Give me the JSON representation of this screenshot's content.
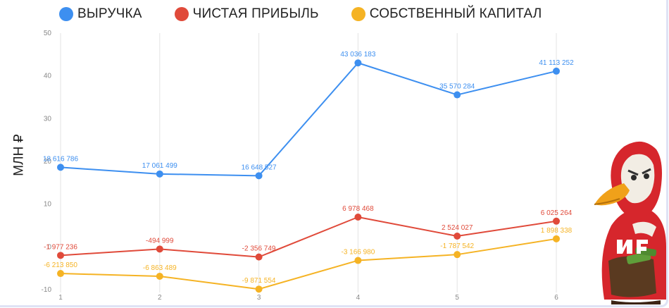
{
  "chart_data": {
    "type": "line",
    "x": [
      1,
      2,
      3,
      4,
      5,
      6
    ],
    "ylabel": "МЛН ₽",
    "xlabel": "",
    "ylim": [
      -10,
      50
    ],
    "yticks": [
      -10,
      0,
      10,
      20,
      30,
      40,
      50
    ],
    "grid": "vertical",
    "legend": "top-left",
    "series": [
      {
        "name": "ВЫРУЧКА",
        "color": "#3d8ff0",
        "values": [
          18.616786,
          17.061499,
          16.648527,
          43.036183,
          35.570284,
          41.113252
        ],
        "labels": [
          "18 616 786",
          "17 061 499",
          "16 648 527",
          "43 036 183",
          "35 570 284",
          "41 113 252"
        ]
      },
      {
        "name": "ЧИСТАЯ ПРИБЫЛЬ",
        "color": "#e04a3a",
        "values": [
          -1.977236,
          -0.494999,
          -2.356749,
          6.978468,
          2.524027,
          6.025264
        ],
        "labels": [
          "-1 977 236",
          "-494 999",
          "-2 356 749",
          "6 978 468",
          "2 524 027",
          "6 025 264"
        ]
      },
      {
        "name": "СОБСТВЕННЫЙ КАПИТАЛ",
        "color": "#f5b324",
        "values": [
          -6.21385,
          -6.863489,
          -9.871554,
          -3.16698,
          -1.787542,
          1.898338
        ],
        "labels": [
          "-6 213 850",
          "-6 863 489",
          "-9 871 554",
          "-3 166 980",
          "-1 787 542",
          "1 898 338"
        ]
      }
    ]
  }
}
